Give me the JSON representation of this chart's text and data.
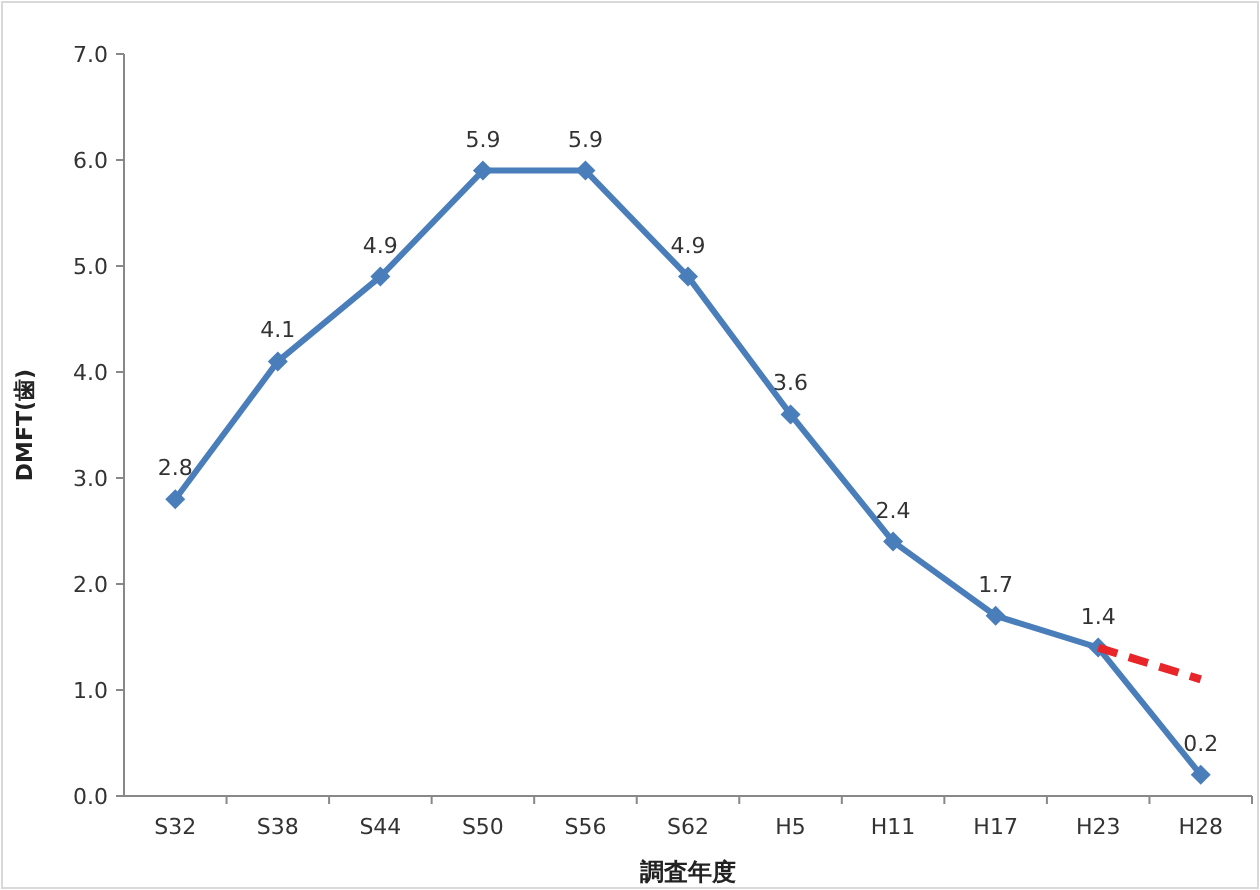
{
  "chart_data": {
    "type": "line",
    "xlabel": "調査年度",
    "ylabel": "DMFT(歯)",
    "categories": [
      "S32",
      "S38",
      "S44",
      "S50",
      "S56",
      "S62",
      "H5",
      "H11",
      "H17",
      "H23",
      "H28"
    ],
    "series": [
      {
        "color": "#4a7ebb",
        "marker": "diamond",
        "line_style": "solid",
        "values": [
          2.8,
          4.1,
          4.9,
          5.9,
          5.9,
          4.9,
          3.6,
          2.4,
          1.7,
          1.4,
          0.2
        ],
        "value_labels": [
          "2.8",
          "4.1",
          "4.9",
          "5.9",
          "5.9",
          "4.9",
          "3.6",
          "2.4",
          "1.7",
          "1.4",
          "0.2"
        ]
      },
      {
        "color": "#e8262a",
        "marker": "none",
        "line_style": "dashed",
        "values": [
          null,
          null,
          null,
          null,
          null,
          null,
          null,
          null,
          null,
          1.4,
          1.1
        ]
      }
    ],
    "ylim": [
      0,
      7
    ],
    "yticks": [
      {
        "value": 0,
        "label": "0.0"
      },
      {
        "value": 1,
        "label": "1.0"
      },
      {
        "value": 2,
        "label": "2.0"
      },
      {
        "value": 3,
        "label": "3.0"
      },
      {
        "value": 4,
        "label": "4.0"
      },
      {
        "value": 5,
        "label": "5.0"
      },
      {
        "value": 6,
        "label": "6.0"
      },
      {
        "value": 7,
        "label": "7.0"
      }
    ],
    "grid": false
  }
}
